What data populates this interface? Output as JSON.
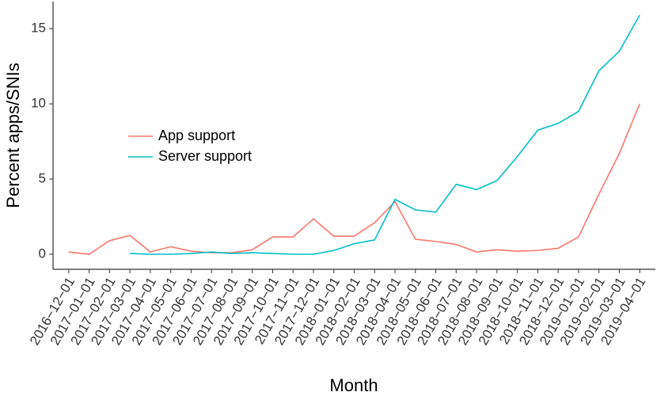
{
  "chart_data": {
    "type": "line",
    "x_label": "Month",
    "y_label": "Percent apps/SNIs",
    "categories": [
      "2016−12−01",
      "2017−01−01",
      "2017−02−01",
      "2017−03−01",
      "2017−04−01",
      "2017−05−01",
      "2017−06−01",
      "2017−07−01",
      "2017−08−01",
      "2017−09−01",
      "2017−10−01",
      "2017−11−01",
      "2017−12−01",
      "2018−01−01",
      "2018−02−01",
      "2018−03−01",
      "2018−04−01",
      "2018−05−01",
      "2018−06−01",
      "2018−07−01",
      "2018−08−01",
      "2018−09−01",
      "2018−10−01",
      "2018−11−01",
      "2018−12−01",
      "2019−01−01",
      "2019−02−01",
      "2019−03−01",
      "2019−04−01"
    ],
    "series": [
      {
        "name": "App support",
        "color": "#f8766d",
        "values": [
          0.15,
          0.0,
          0.9,
          1.25,
          0.15,
          0.5,
          0.2,
          0.1,
          0.1,
          0.3,
          1.15,
          1.15,
          2.35,
          1.2,
          1.2,
          2.1,
          3.5,
          1.0,
          0.85,
          0.65,
          0.15,
          0.3,
          0.2,
          0.25,
          0.4,
          1.15,
          4.0,
          6.7,
          10.0
        ]
      },
      {
        "name": "Server support",
        "color": "#00bfc4",
        "values": [
          null,
          null,
          null,
          0.05,
          0.0,
          0.0,
          0.05,
          0.15,
          0.05,
          0.1,
          0.05,
          0.0,
          0.0,
          0.25,
          0.7,
          0.95,
          3.65,
          2.95,
          2.8,
          4.65,
          4.3,
          4.9,
          6.5,
          8.25,
          8.7,
          9.5,
          12.2,
          13.5,
          15.9
        ]
      }
    ],
    "ylim": [
      -1,
      16.8
    ],
    "yticks": [
      0,
      5,
      10,
      15
    ],
    "grid": false,
    "legend": "left"
  }
}
